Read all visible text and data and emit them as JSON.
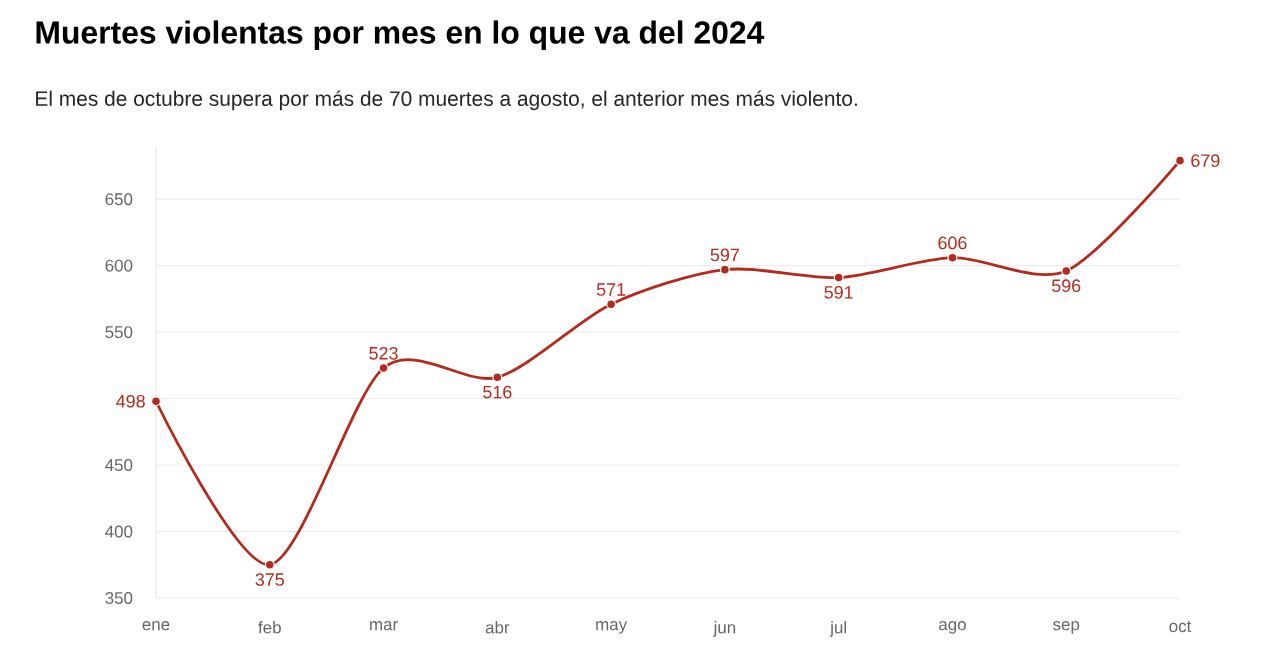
{
  "chart_data": {
    "type": "line",
    "title": "Muertes violentas por mes en lo que va del 2024",
    "subtitle": "El mes de octubre supera por más de 70 muertes a agosto, el anterior mes más violento.",
    "categories": [
      "ene",
      "feb",
      "mar",
      "abr",
      "may",
      "jun",
      "jul",
      "ago",
      "sep",
      "oct"
    ],
    "values": [
      498,
      375,
      523,
      516,
      571,
      597,
      591,
      606,
      596,
      679
    ],
    "color": "#b52a1c",
    "ylim": [
      350,
      690
    ],
    "yticks": [
      350,
      400,
      450,
      {
        "value": 500,
        "label": null
      },
      550,
      600,
      650
    ],
    "grid": "y",
    "marker": "circle",
    "line_style": "solid",
    "data_labels": true
  }
}
